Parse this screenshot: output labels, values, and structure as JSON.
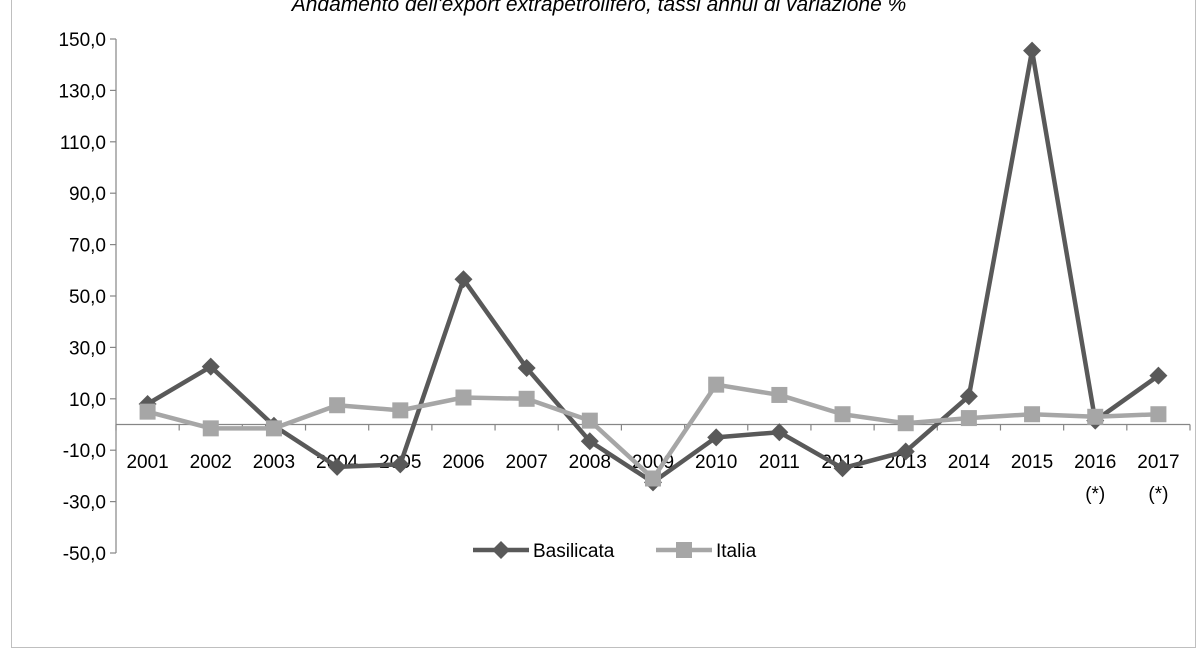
{
  "chart_data": {
    "type": "line",
    "title": "Andamento dell'export extrapetrolifero, tassi annui di variazione %",
    "xlabel": "",
    "ylabel": "",
    "ylim": [
      -50,
      150
    ],
    "y_ticks": [
      "150,0",
      "130,0",
      "110,0",
      "90,0",
      "70,0",
      "50,0",
      "30,0",
      "10,0",
      "-10,0",
      "-30,0",
      "-50,0"
    ],
    "y_tick_values": [
      150,
      130,
      110,
      90,
      70,
      50,
      30,
      10,
      -10,
      -30,
      -50
    ],
    "categories": [
      [
        "2001"
      ],
      [
        "2002"
      ],
      [
        "2003"
      ],
      [
        "2004"
      ],
      [
        "2005"
      ],
      [
        "2006"
      ],
      [
        "2007"
      ],
      [
        "2008"
      ],
      [
        "2009"
      ],
      [
        "2010"
      ],
      [
        "2011"
      ],
      [
        "2012"
      ],
      [
        "2013"
      ],
      [
        "2014"
      ],
      [
        "2015"
      ],
      [
        "2016",
        "(*)"
      ],
      [
        "2017",
        "(*)"
      ]
    ],
    "series": [
      {
        "name": "Basilicata",
        "color": "#595959",
        "marker": "diamond",
        "values": [
          8.0,
          22.5,
          -0.5,
          -16.5,
          -15.5,
          56.5,
          22.0,
          -6.5,
          -22.5,
          -5.0,
          -3.0,
          -17.0,
          -10.5,
          11.0,
          145.5,
          1.5,
          19.0
        ]
      },
      {
        "name": "Italia",
        "color": "#a6a6a6",
        "marker": "square",
        "values": [
          5.0,
          -1.5,
          -1.5,
          7.5,
          5.5,
          10.5,
          10.0,
          1.5,
          -21.0,
          15.5,
          11.5,
          4.0,
          0.5,
          2.5,
          4.0,
          3.0,
          4.0
        ]
      }
    ],
    "grid": false,
    "legend_position": "bottom-center"
  }
}
